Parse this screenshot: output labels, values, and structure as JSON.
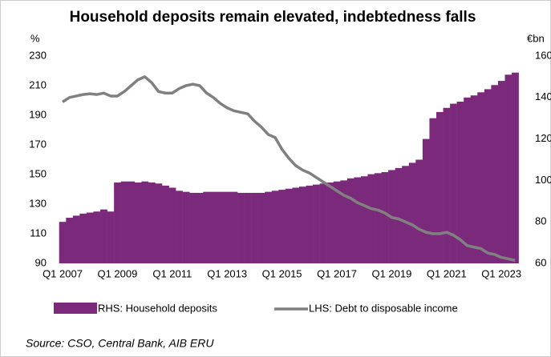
{
  "chart_data": {
    "type": "bar",
    "title": "Household deposits remain elevated, indebtedness falls",
    "y_label": "%",
    "y2_label": "€bn",
    "source": "Source: CSO, Central Bank, AIB ERU",
    "categories": [
      "Q1 2007",
      null,
      null,
      null,
      null,
      null,
      null,
      null,
      "Q1 2009",
      null,
      null,
      null,
      null,
      null,
      null,
      null,
      "Q1 2011",
      null,
      null,
      null,
      null,
      null,
      null,
      null,
      "Q1 2013",
      null,
      null,
      null,
      null,
      null,
      null,
      null,
      "Q1 2015",
      null,
      null,
      null,
      null,
      null,
      null,
      null,
      "Q1 2017",
      null,
      null,
      null,
      null,
      null,
      null,
      null,
      "Q1 2019",
      null,
      null,
      null,
      null,
      null,
      null,
      null,
      "Q1 2021",
      null,
      null,
      null,
      null,
      null,
      null,
      null,
      "Q1 2023",
      null,
      null
    ],
    "ylim": [
      90,
      230
    ],
    "yticks": [
      90,
      110,
      130,
      150,
      170,
      190,
      210,
      230
    ],
    "y2lim": [
      60,
      160
    ],
    "y2ticks": [
      60,
      80,
      100,
      120,
      140,
      160
    ],
    "series": [
      {
        "name": "RHS: Household deposits",
        "type": "bar",
        "axis": "y2",
        "color": "#7b2a7b",
        "values": [
          80,
          82,
          83,
          84,
          84.5,
          85,
          86,
          85,
          99,
          99.5,
          99.5,
          99,
          99.5,
          99,
          98.5,
          97.5,
          96.5,
          95,
          94.5,
          94,
          94,
          94.5,
          94.5,
          94.5,
          94.5,
          94.5,
          94,
          94,
          94,
          94,
          94.5,
          95,
          95.5,
          96,
          96.5,
          97,
          97.5,
          98,
          98.5,
          99,
          99.5,
          100,
          101,
          101.5,
          102,
          103,
          103.5,
          104,
          105,
          106,
          107,
          108.5,
          110,
          120,
          130,
          133,
          135,
          137,
          138,
          140,
          141,
          142.5,
          144,
          146,
          148,
          151,
          152
        ]
      },
      {
        "name": "LHS: Debt to disposable income",
        "type": "line",
        "color": "#808080",
        "values": [
          199,
          202,
          203,
          204,
          204.5,
          204,
          205,
          203,
          203,
          206,
          210,
          214,
          216,
          212,
          206,
          205,
          205,
          208,
          210,
          211,
          210,
          205,
          202,
          198,
          195,
          193,
          192,
          191,
          186,
          182,
          177,
          175,
          167,
          161,
          156,
          153,
          151,
          148,
          145,
          142,
          139,
          136,
          134,
          131,
          129,
          127,
          126,
          124,
          121,
          120,
          118,
          116,
          113,
          111,
          110,
          110,
          111,
          109,
          106,
          102,
          101,
          100,
          97,
          96,
          94,
          93,
          92
        ]
      }
    ]
  }
}
